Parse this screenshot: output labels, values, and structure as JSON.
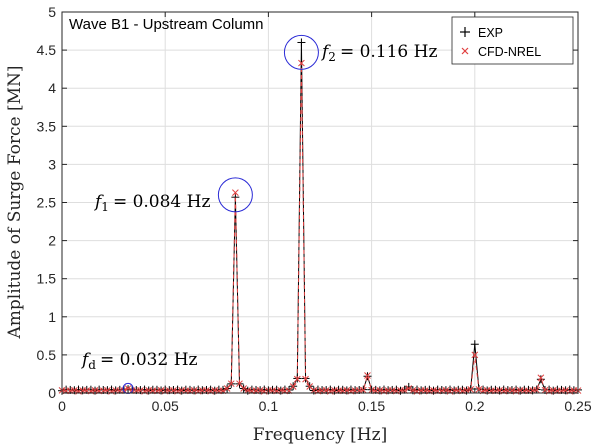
{
  "chart_data": {
    "type": "line",
    "title": "Wave B1 - Upstream Column",
    "xlabel": "Frequency [Hz]",
    "ylabel": "Amplitude of Surge Force [MN]",
    "xlim": [
      0,
      0.25
    ],
    "ylim": [
      0,
      5
    ],
    "x_ticks": [
      0,
      0.05,
      0.1,
      0.15,
      0.2,
      0.25
    ],
    "x_tick_labels": [
      "0",
      "0.05",
      "0.1",
      "0.15",
      "0.2",
      "0.25"
    ],
    "y_ticks": [
      0,
      0.5,
      1,
      1.5,
      2,
      2.5,
      3,
      3.5,
      4,
      4.5,
      5
    ],
    "y_tick_labels": [
      "0",
      "0.5",
      "1",
      "1.5",
      "2",
      "2.5",
      "3",
      "3.5",
      "4",
      "4.5",
      "5"
    ],
    "grid": true,
    "legend_position": "top-right",
    "series": [
      {
        "name": "EXP",
        "color": "#000000",
        "marker": "plus",
        "line_style": "solid",
        "peaks": [
          {
            "x": 0.032,
            "y": 0.05
          },
          {
            "x": 0.084,
            "y": 2.57
          },
          {
            "x": 0.116,
            "y": 4.6
          },
          {
            "x": 0.148,
            "y": 0.22
          },
          {
            "x": 0.168,
            "y": 0.08
          },
          {
            "x": 0.2,
            "y": 0.64
          },
          {
            "x": 0.232,
            "y": 0.18
          }
        ],
        "baseline": 0.03
      },
      {
        "name": "CFD-NREL",
        "color": "#e04040",
        "marker": "x",
        "line_style": "dashed",
        "peaks": [
          {
            "x": 0.032,
            "y": 0.06
          },
          {
            "x": 0.084,
            "y": 2.63
          },
          {
            "x": 0.116,
            "y": 4.33
          },
          {
            "x": 0.148,
            "y": 0.23
          },
          {
            "x": 0.168,
            "y": 0.06
          },
          {
            "x": 0.2,
            "y": 0.5
          },
          {
            "x": 0.232,
            "y": 0.2
          }
        ],
        "baseline": 0.02
      }
    ],
    "annotations": [
      {
        "sub": "1",
        "value_text": "= 0.084 Hz",
        "x": 0.084,
        "y": 2.6
      },
      {
        "sub": "2",
        "value_text": "= 0.116 Hz",
        "x": 0.116,
        "y": 4.47
      },
      {
        "sub": "d",
        "value_text": "= 0.032 Hz",
        "x": 0.032,
        "y": 0.06
      }
    ]
  }
}
